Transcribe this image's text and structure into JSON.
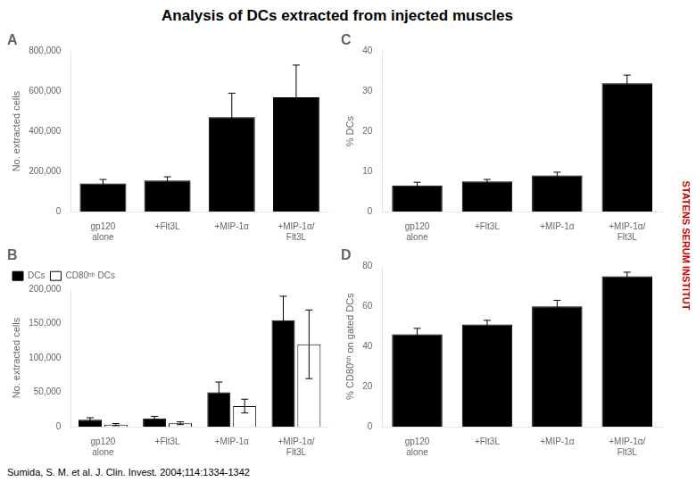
{
  "title": "Analysis of DCs extracted from injected muscles",
  "annotations": [
    {
      "text": "Sumida, S. M. et al. J. Clin. Invest. 2004;114:1334-1342"
    },
    {
      "text": "STATENS SERUM INSTITUT",
      "color": "#cc0000"
    }
  ],
  "chart_data": [
    {
      "type": "bar",
      "title": "A",
      "y_label": "No. extracted cells",
      "categories": [
        "gp120\nalone",
        "+Flt3L",
        "+MIP-1α",
        "+MIP-1α/\nFlt3L"
      ],
      "values": [
        140000,
        155000,
        470000,
        570000
      ],
      "errors": [
        20000,
        18000,
        120000,
        160000
      ],
      "color": "#000000",
      "ylim": [
        0,
        800000
      ],
      "yticks": [
        0,
        {
          "value": 200000,
          "label": "200,000"
        },
        {
          "value": 400000,
          "label": "400,000"
        },
        {
          "value": 600000,
          "label": "600,000"
        },
        {
          "value": 800000,
          "label": "800,000"
        }
      ],
      "grid": false
    },
    {
      "type": "bar",
      "title": "B",
      "y_label": "No. extracted cells",
      "categories": [
        "gp120\nalone",
        "+Flt3L",
        "+MIP-1α",
        "+MIP-1α/\nFlt3L"
      ],
      "series": [
        {
          "name": "DCs",
          "color": "#000000",
          "values": [
            10000,
            12000,
            50000,
            155000
          ],
          "errors": [
            3000,
            3000,
            15000,
            35000
          ]
        },
        {
          "name": "CD80ʰʰ DCs",
          "color": "#ffffff",
          "values": [
            3000,
            5000,
            30000,
            120000
          ],
          "errors": [
            1500,
            2000,
            10000,
            50000
          ]
        }
      ],
      "ylim": [
        0,
        200000
      ],
      "yticks": [
        0,
        {
          "value": 50000,
          "label": "50,000"
        },
        {
          "value": 100000,
          "label": "100,000"
        },
        {
          "value": 150000,
          "label": "150,000"
        },
        {
          "value": 200000,
          "label": "200,000"
        }
      ],
      "grid": false,
      "legend": "upper left"
    },
    {
      "type": "bar",
      "title": "C",
      "y_label": "% DCs",
      "categories": [
        "gp120\nalone",
        "+Flt3L",
        "+MIP-1α",
        "+MIP-1α/\nFlt3L"
      ],
      "values": [
        6.5,
        7.5,
        9.0,
        32.0
      ],
      "errors": [
        0.8,
        0.5,
        0.8,
        2.0
      ],
      "color": "#000000",
      "ylim": [
        0,
        40
      ],
      "yticks": [
        0,
        10,
        20,
        30,
        40
      ],
      "grid": false
    },
    {
      "type": "bar",
      "title": "D",
      "y_label": "% CD80ʰʰ on gated DCs",
      "categories": [
        "gp120\nalone",
        "+Flt3L",
        "+MIP-1α",
        "+MIP-1α/\nFlt3L"
      ],
      "values": [
        46,
        51,
        60,
        75
      ],
      "errors": [
        3,
        2,
        3,
        2
      ],
      "color": "#000000",
      "ylim": [
        0,
        80
      ],
      "yticks": [
        0,
        20,
        40,
        60,
        80
      ],
      "grid": false
    }
  ]
}
